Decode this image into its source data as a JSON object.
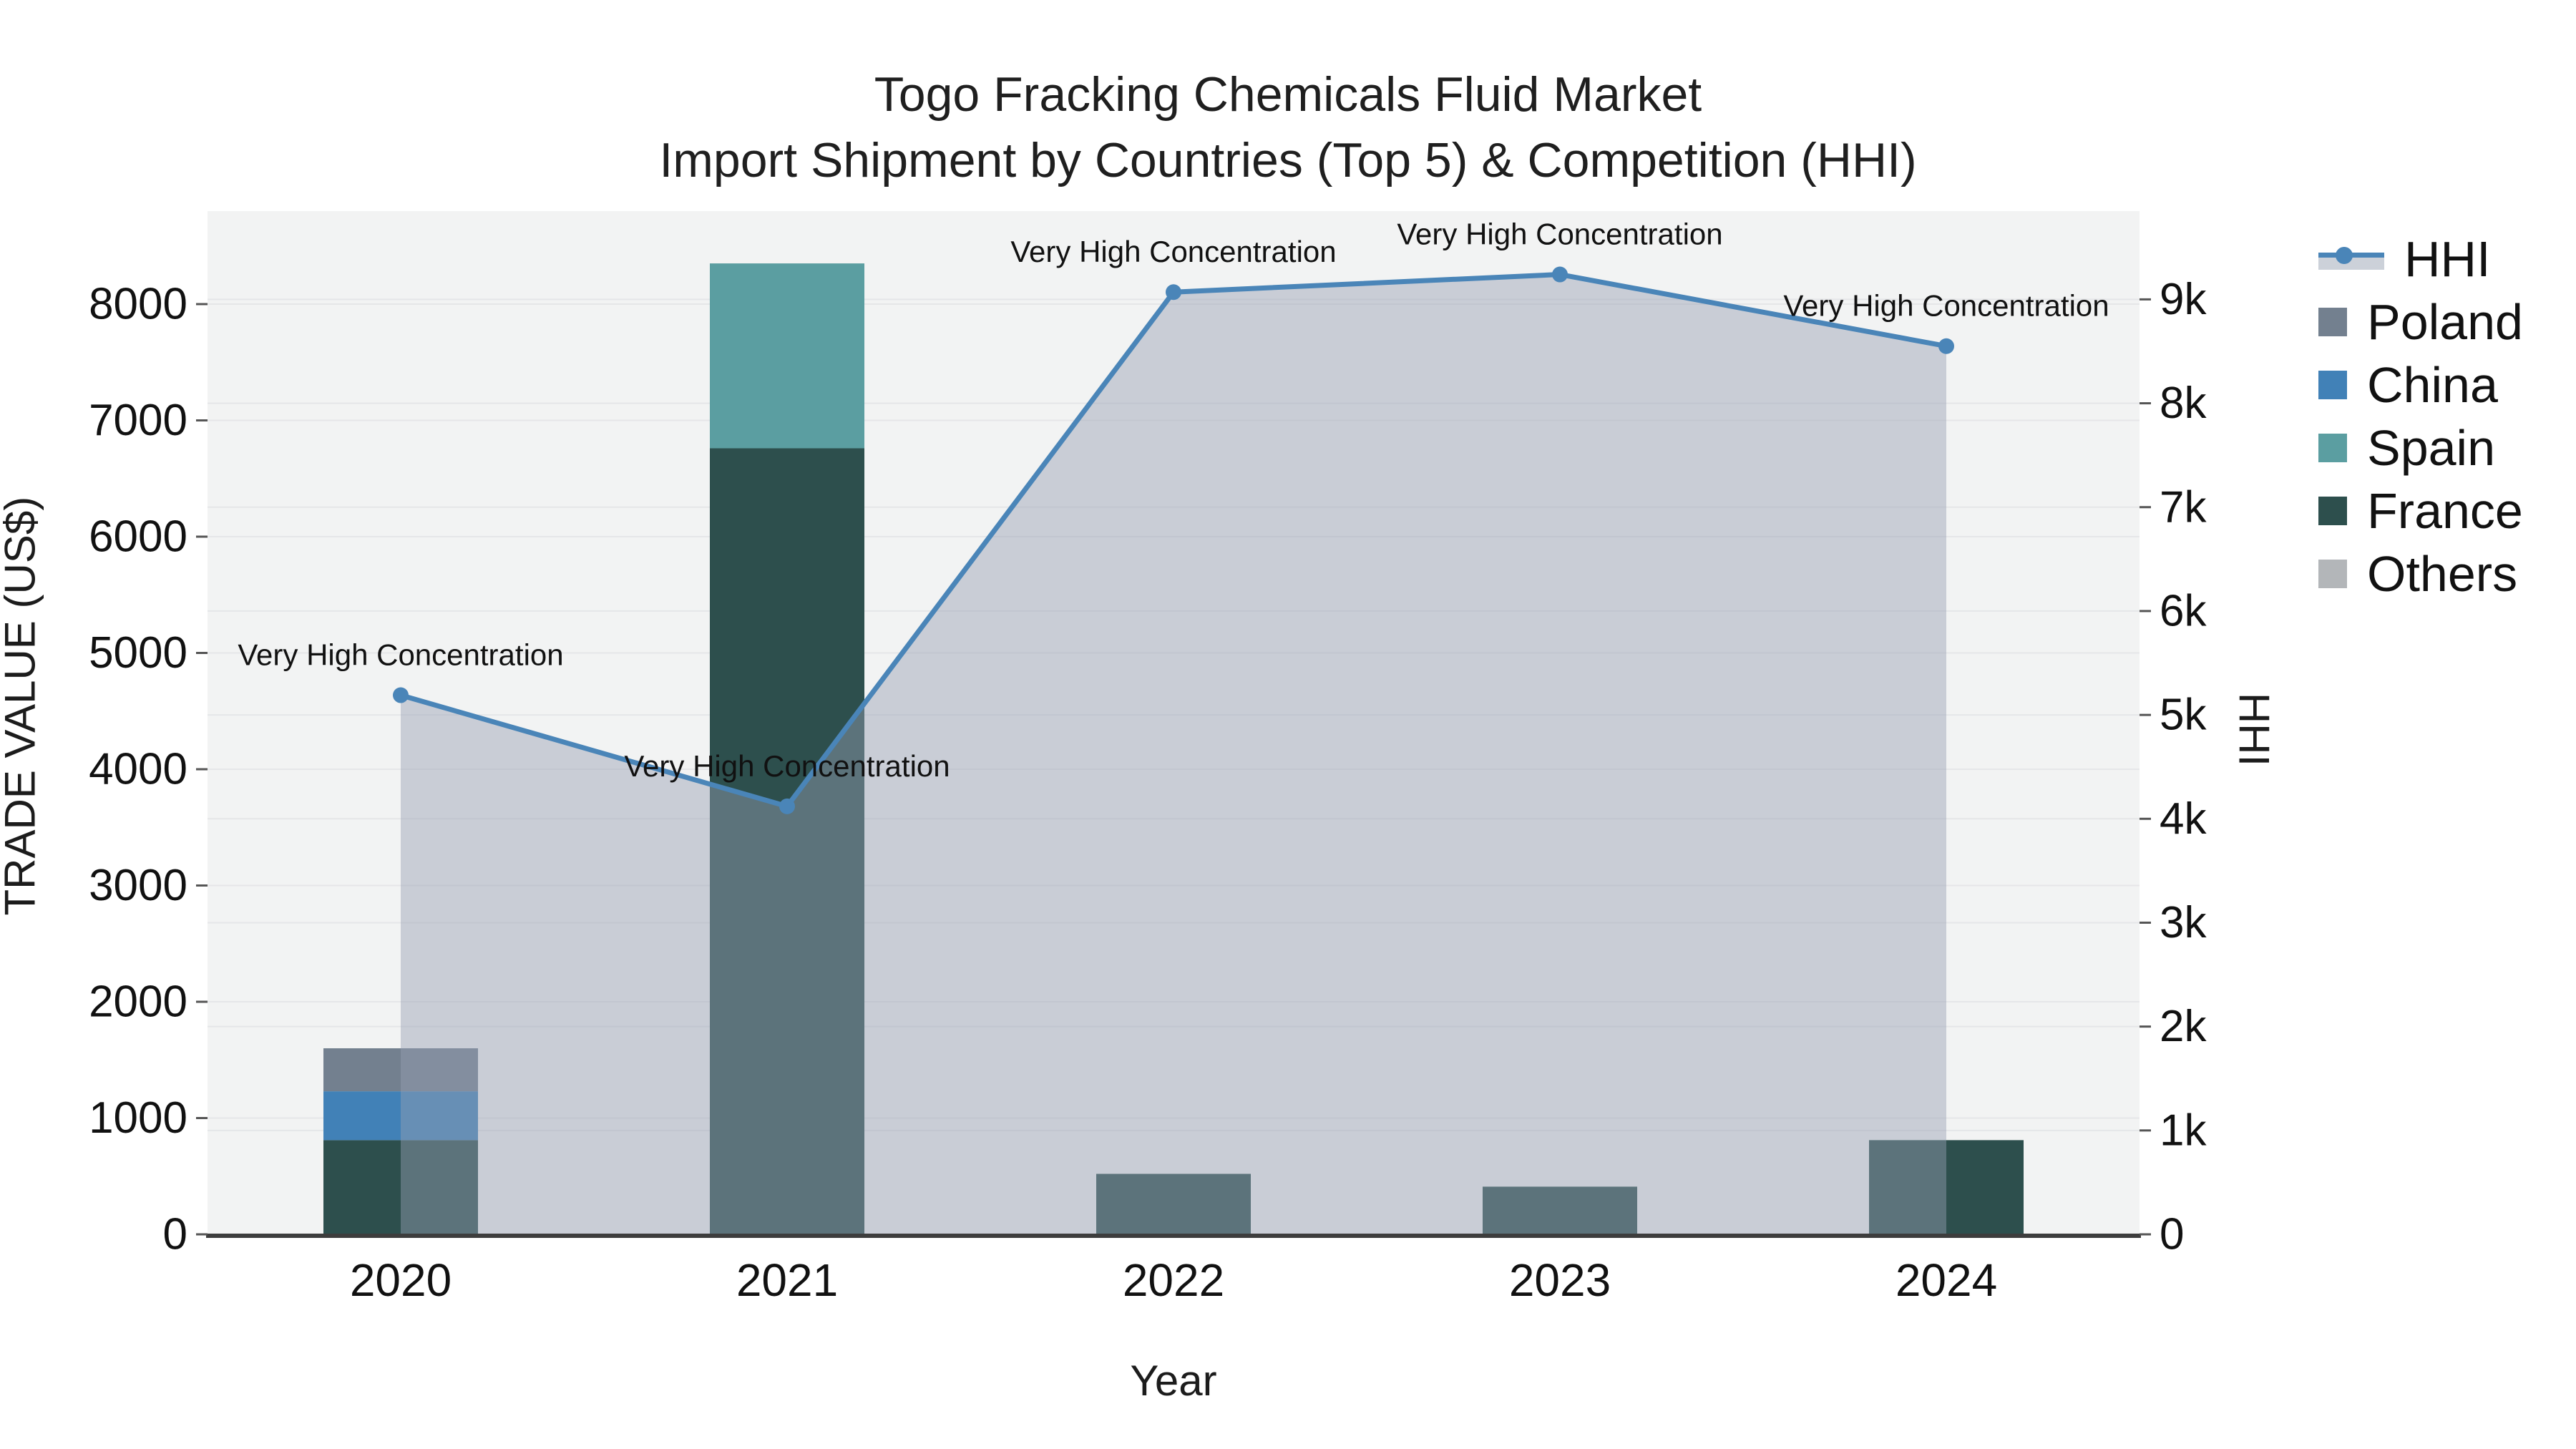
{
  "title": {
    "line1": "Togo Fracking Chemicals Fluid Market",
    "line2": "Import Shipment by Countries (Top 5) & Competition (HHI)"
  },
  "axes": {
    "x_title": "Year",
    "y_left_title": "TRADE VALUE (US$)",
    "y_right_title": "HHI"
  },
  "legend": {
    "items": [
      {
        "label": "HHI",
        "type": "line"
      },
      {
        "label": "Poland",
        "type": "swatch",
        "color": "#73808f"
      },
      {
        "label": "China",
        "type": "swatch",
        "color": "#4181b7"
      },
      {
        "label": "Spain",
        "type": "swatch",
        "color": "#5b9ea1"
      },
      {
        "label": "France",
        "type": "swatch",
        "color": "#2d4f4d"
      },
      {
        "label": "Others",
        "type": "swatch",
        "color": "#b3b6b9"
      }
    ]
  },
  "colors": {
    "figure_bg": "#ffffff",
    "plot_bg": "#f2f3f3",
    "grid": "#e5e6e8",
    "axis_line": "#3d3d3d",
    "tick_text": "#111111",
    "annotation_text": "#111111",
    "hhi_line": "#4a85b8",
    "hhi_area": "rgba(150,160,180,0.45)",
    "legend_band": "#ccd1d9"
  },
  "chart_data": {
    "type": "stacked-bar+line",
    "title": "Togo Fracking Chemicals Fluid Market Import Shipment by Countries (Top 5) & Competition (HHI)",
    "categories": [
      "2020",
      "2021",
      "2022",
      "2023",
      "2024"
    ],
    "bar_series": [
      {
        "name": "Others",
        "color": "#b3b6b9",
        "values": [
          0,
          0,
          0,
          0,
          0
        ]
      },
      {
        "name": "France",
        "color": "#2d4f4d",
        "values": [
          810,
          6760,
          520,
          410,
          810
        ]
      },
      {
        "name": "Spain",
        "color": "#5b9ea1",
        "values": [
          0,
          1590,
          0,
          0,
          0
        ]
      },
      {
        "name": "China",
        "color": "#4181b7",
        "values": [
          420,
          0,
          0,
          0,
          0
        ]
      },
      {
        "name": "Poland",
        "color": "#73808f",
        "values": [
          370,
          0,
          0,
          0,
          0
        ]
      }
    ],
    "line_series": {
      "name": "HHI",
      "axis": "right",
      "values": [
        5190,
        4120,
        9070,
        9240,
        8550
      ]
    },
    "annotations": [
      {
        "index": 0,
        "text": "Very High Concentration"
      },
      {
        "index": 1,
        "text": "Very High Concentration"
      },
      {
        "index": 2,
        "text": "Very High Concentration"
      },
      {
        "index": 3,
        "text": "Very High Concentration"
      },
      {
        "index": 4,
        "text": "Very High Concentration"
      }
    ],
    "y_left": {
      "label": "TRADE VALUE (US$)",
      "range": [
        0,
        8800
      ],
      "ticks": [
        {
          "label": "0",
          "value": 0
        },
        {
          "label": "1000",
          "value": 1000
        },
        {
          "label": "2000",
          "value": 2000
        },
        {
          "label": "3000",
          "value": 3000
        },
        {
          "label": "4000",
          "value": 4000
        },
        {
          "label": "5000",
          "value": 5000
        },
        {
          "label": "6000",
          "value": 6000
        },
        {
          "label": "7000",
          "value": 7000
        },
        {
          "label": "8000",
          "value": 8000
        }
      ]
    },
    "y_right": {
      "label": "HHI",
      "range": [
        0,
        9850
      ],
      "ticks": [
        {
          "label": "0",
          "value": 0
        },
        {
          "label": "1k",
          "value": 1000
        },
        {
          "label": "2k",
          "value": 2000
        },
        {
          "label": "3k",
          "value": 3000
        },
        {
          "label": "4k",
          "value": 4000
        },
        {
          "label": "5k",
          "value": 5000
        },
        {
          "label": "6k",
          "value": 6000
        },
        {
          "label": "7k",
          "value": 7000
        },
        {
          "label": "8k",
          "value": 8000
        },
        {
          "label": "9k",
          "value": 9000
        }
      ]
    },
    "x_label": "Year",
    "grid": true,
    "legend_position": "right"
  }
}
